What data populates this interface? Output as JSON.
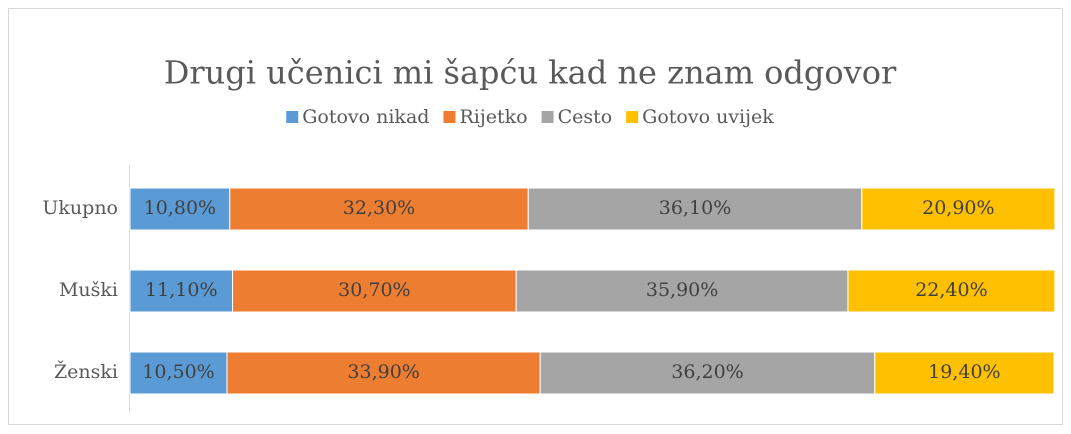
{
  "chart_data": {
    "type": "stacked-bar-horizontal",
    "title": "Drugi učenici mi šapću kad ne znam odgovor",
    "categories": [
      "Ukupno",
      "Muški",
      "Ženski"
    ],
    "xlim": [
      0,
      100
    ],
    "legend": "top",
    "series": [
      {
        "name": "Gotovo nikad",
        "color": "#5b9bd5",
        "values": [
          10.8,
          11.1,
          10.5
        ],
        "value_labels": [
          "10,80%",
          "11,10%",
          "10,50%"
        ]
      },
      {
        "name": "Rijetko",
        "color": "#ed7d31",
        "values": [
          32.3,
          30.7,
          33.9
        ],
        "value_labels": [
          "32,30%",
          "30,70%",
          "33,90%"
        ]
      },
      {
        "name": "Cesto",
        "color": "#a5a5a5",
        "values": [
          36.1,
          35.9,
          36.2
        ],
        "value_labels": [
          "36,10%",
          "35,90%",
          "36,20%"
        ]
      },
      {
        "name": "Gotovo uvijek",
        "color": "#ffc000",
        "values": [
          20.9,
          22.4,
          19.4
        ],
        "value_labels": [
          "20,90%",
          "22,40%",
          "19,40%"
        ]
      }
    ]
  }
}
